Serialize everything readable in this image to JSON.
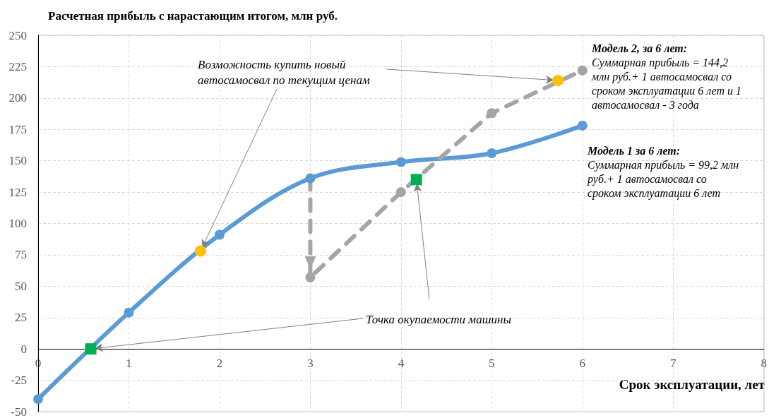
{
  "chart_data": {
    "type": "line",
    "title": "Расчетная прибыль с нарастающим итогом, млн руб.",
    "xlabel": "Срок эксплуатации, лет",
    "series": [
      {
        "type": "line",
        "color": "#5b9bd5",
        "marker": "circle",
        "line_style": "solid",
        "x": [
          0,
          1,
          2,
          3,
          4,
          5,
          6
        ],
        "values": [
          -40,
          29,
          91,
          136,
          149,
          156,
          178
        ]
      },
      {
        "type": "line",
        "color": "#a5a5a5",
        "marker": "circle",
        "line_style": "dashed",
        "x": [
          3,
          3,
          4,
          5,
          6
        ],
        "values": [
          136,
          57,
          125,
          188,
          222
        ]
      },
      {
        "type": "scatter",
        "color": "#ffc000",
        "marker": "circle",
        "x": [
          1.79,
          5.73
        ],
        "values": [
          78,
          214
        ]
      },
      {
        "type": "scatter",
        "color": "#00b050",
        "marker": "square",
        "x": [
          0.58,
          4.17
        ],
        "values": [
          0,
          135
        ]
      }
    ],
    "annotations": [
      {
        "text": "Возможность купить новый автосамосвал по текущим ценам",
        "x": 1.79,
        "y": 78
      },
      {
        "text": "Точка окупаемости машины",
        "x": 0.58,
        "y": 0
      },
      "Модель 2, за 6 лет:",
      "Суммарная прибыль = 144,2 млн руб.+ 1 автосамосвал со сроком эксплуатации 6 лет и 1 автосамосвал - 3 года",
      "Модель 1 за 6 лет:",
      "Суммарная прибыль = 99,2 млн руб.+ 1 автосамосвал со сроком эксплуатации 6 лет"
    ],
    "xlim": [
      0,
      8
    ],
    "xticks": [
      0,
      1,
      2,
      3,
      4,
      5,
      6,
      7,
      8
    ],
    "ylim": [
      -50,
      250
    ],
    "yticks": [
      -50,
      -25,
      0,
      25,
      50,
      75,
      100,
      125,
      150,
      175,
      200,
      225,
      250
    ],
    "grid": true
  }
}
